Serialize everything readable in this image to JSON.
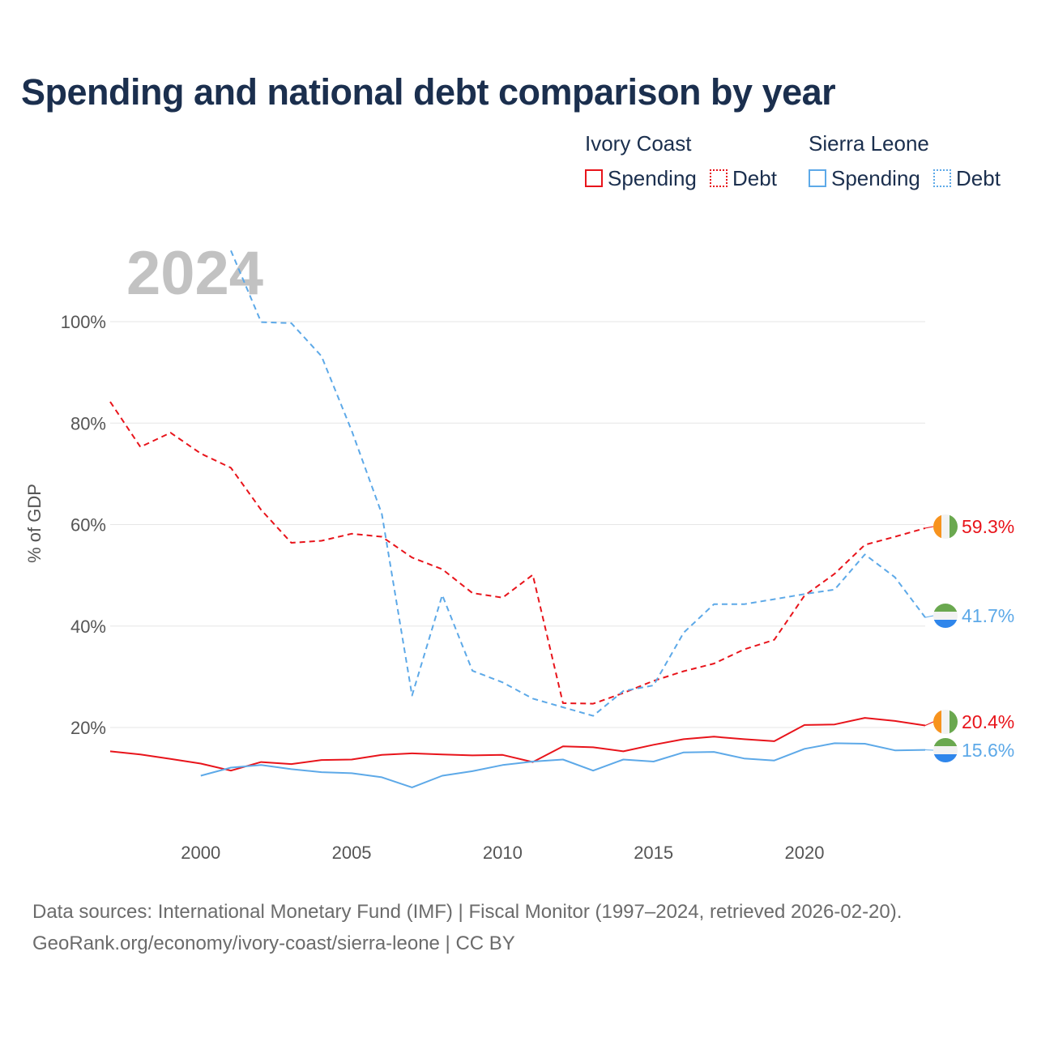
{
  "title": "Spending and national debt comparison by year",
  "legend": {
    "groups": [
      {
        "country": "Ivory Coast",
        "spending_label": "Spending",
        "debt_label": "Debt",
        "color": "#e8141b"
      },
      {
        "country": "Sierra Leone",
        "spending_label": "Spending",
        "debt_label": "Debt",
        "color": "#5da9e8"
      }
    ]
  },
  "year_watermark": "2024",
  "footer": {
    "line1": "Data sources: International Monetary Fund (IMF) | Fiscal Monitor (1997–2024, retrieved 2026-02-20).",
    "line2": "GeoRank.org/economy/ivory-coast/sierra-leone | CC BY"
  },
  "chart_data": {
    "type": "line",
    "title": "Spending and national debt comparison by year",
    "xlabel": "",
    "ylabel": "% of GDP",
    "xlim": [
      1997,
      2024
    ],
    "ylim": [
      0,
      115
    ],
    "x_ticks": [
      2000,
      2005,
      2010,
      2015,
      2020
    ],
    "y_ticks": [
      20,
      40,
      60,
      80,
      100
    ],
    "y_tick_labels": [
      "20%",
      "40%",
      "60%",
      "80%",
      "100%"
    ],
    "grid": true,
    "series": [
      {
        "name": "Ivory Coast Debt",
        "country": "Ivory Coast",
        "metric": "Debt",
        "style": "dashed",
        "color": "#e8141b",
        "x": [
          1997,
          1998,
          1999,
          2000,
          2001,
          2002,
          2003,
          2004,
          2005,
          2006,
          2007,
          2008,
          2009,
          2010,
          2011,
          2012,
          2013,
          2014,
          2015,
          2016,
          2017,
          2018,
          2019,
          2020,
          2021,
          2022,
          2023,
          2024
        ],
        "values": [
          84.2,
          75.3,
          78.1,
          74.0,
          71.2,
          62.9,
          56.4,
          56.8,
          58.2,
          57.6,
          53.5,
          51.2,
          46.5,
          45.6,
          50.1,
          24.8,
          24.7,
          26.8,
          29.2,
          31.1,
          32.6,
          35.4,
          37.3,
          46.0,
          50.3,
          56.0,
          57.6,
          59.3
        ],
        "end_label": "59.3%"
      },
      {
        "name": "Sierra Leone Debt",
        "country": "Sierra Leone",
        "metric": "Debt",
        "style": "dashed",
        "color": "#5da9e8",
        "x": [
          2001,
          2002,
          2003,
          2004,
          2005,
          2006,
          2007,
          2008,
          2009,
          2010,
          2011,
          2012,
          2013,
          2014,
          2015,
          2016,
          2017,
          2018,
          2019,
          2020,
          2021,
          2022,
          2023,
          2024
        ],
        "values": [
          114.0,
          99.9,
          99.7,
          93.2,
          78.5,
          62.1,
          26.3,
          46.1,
          31.2,
          28.9,
          25.7,
          24.0,
          22.3,
          27.2,
          28.3,
          38.7,
          44.3,
          44.3,
          45.3,
          46.3,
          47.2,
          54.1,
          49.6,
          41.7
        ],
        "end_label": "41.7%"
      },
      {
        "name": "Ivory Coast Spending",
        "country": "Ivory Coast",
        "metric": "Spending",
        "style": "solid",
        "color": "#e8141b",
        "x": [
          1997,
          1998,
          1999,
          2000,
          2001,
          2002,
          2003,
          2004,
          2005,
          2006,
          2007,
          2008,
          2009,
          2010,
          2011,
          2012,
          2013,
          2014,
          2015,
          2016,
          2017,
          2018,
          2019,
          2020,
          2021,
          2022,
          2023,
          2024
        ],
        "values": [
          15.3,
          14.7,
          13.8,
          12.9,
          11.5,
          13.2,
          12.8,
          13.6,
          13.7,
          14.6,
          14.9,
          14.7,
          14.5,
          14.6,
          13.2,
          16.3,
          16.1,
          15.3,
          16.6,
          17.7,
          18.2,
          17.7,
          17.3,
          20.5,
          20.6,
          21.9,
          21.3,
          20.4
        ],
        "end_label": "20.4%"
      },
      {
        "name": "Sierra Leone Spending",
        "country": "Sierra Leone",
        "metric": "Spending",
        "style": "solid",
        "color": "#5da9e8",
        "x": [
          2000,
          2001,
          2002,
          2003,
          2004,
          2005,
          2006,
          2007,
          2008,
          2009,
          2010,
          2011,
          2012,
          2013,
          2014,
          2015,
          2016,
          2017,
          2018,
          2019,
          2020,
          2021,
          2022,
          2023,
          2024
        ],
        "values": [
          10.5,
          12.1,
          12.6,
          11.8,
          11.2,
          11.0,
          10.2,
          8.2,
          10.5,
          11.4,
          12.6,
          13.3,
          13.7,
          11.5,
          13.7,
          13.3,
          15.1,
          15.2,
          13.9,
          13.5,
          15.8,
          16.9,
          16.8,
          15.5,
          15.6
        ],
        "end_label": "15.6%"
      }
    ]
  }
}
